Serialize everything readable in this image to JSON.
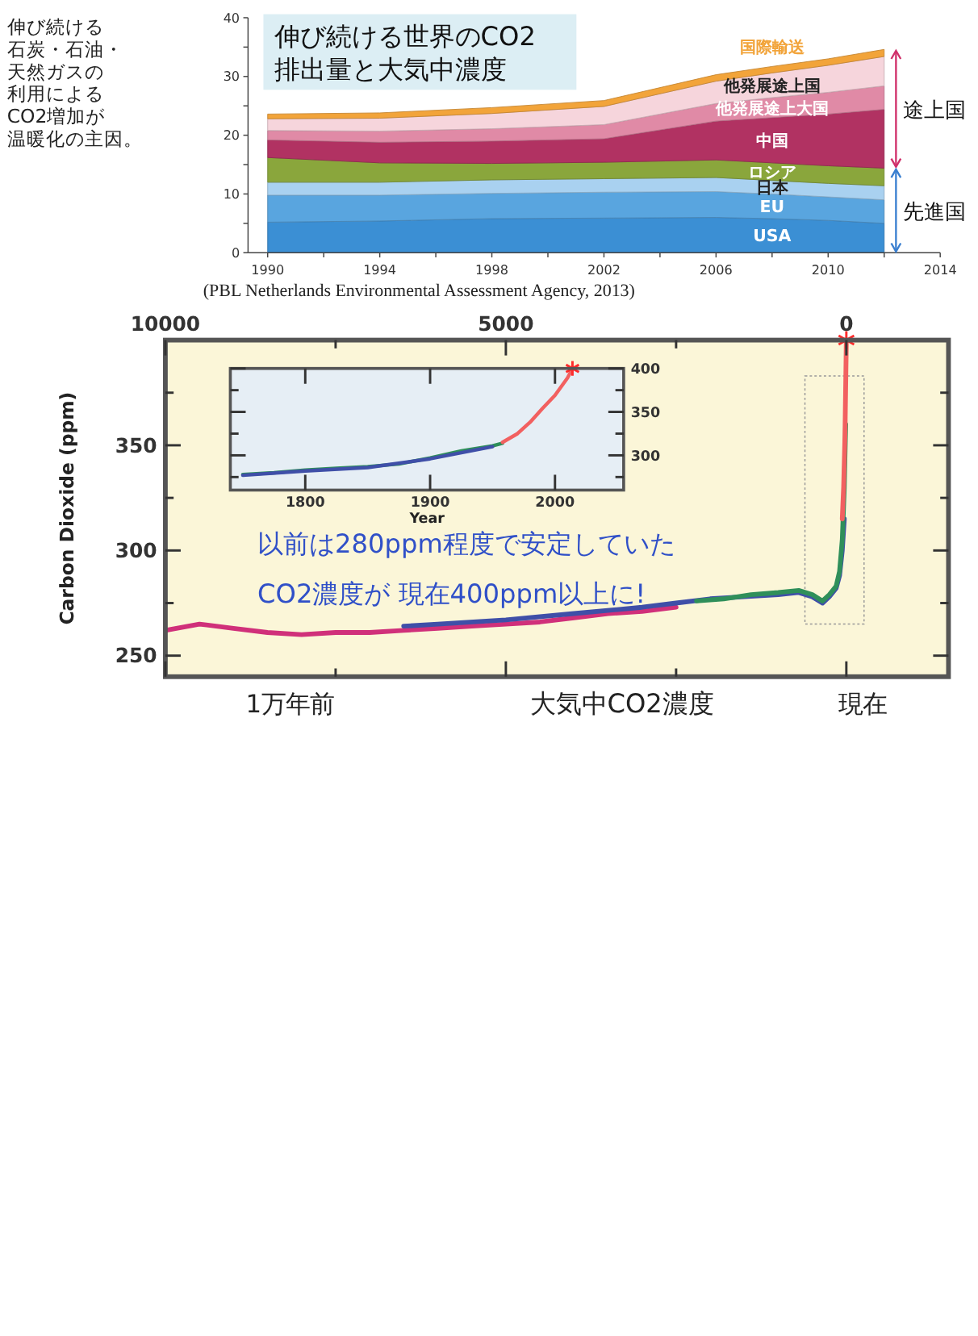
{
  "chart_data": [
    {
      "type": "area",
      "stacked": true,
      "title": "伸び続ける世界のCO2排出量と大気中濃度",
      "x": [
        1990,
        1994,
        1998,
        2002,
        2006,
        2008,
        2010,
        2012
      ],
      "xlim": [
        1989.3,
        2014
      ],
      "xticks": [
        1990,
        {
          "value": 1992,
          "label": null
        },
        1994,
        {
          "value": 1996,
          "label": null
        },
        1998,
        {
          "value": 2000,
          "label": null
        },
        2002,
        {
          "value": 2004,
          "label": null
        },
        2006,
        {
          "value": 2008,
          "label": null
        },
        2010,
        {
          "value": 2012,
          "label": null
        },
        2014
      ],
      "ylim": [
        0,
        40
      ],
      "yticks": [
        0,
        {
          "value": 5,
          "label": null
        },
        10,
        {
          "value": 15,
          "label": null
        },
        20,
        {
          "value": 25,
          "label": null
        },
        30,
        {
          "value": 35,
          "label": null
        },
        40
      ],
      "series": [
        {
          "name": "USA",
          "color": "#3b8fd4",
          "values": [
            5.2,
            5.4,
            5.8,
            5.9,
            6.0,
            5.8,
            5.5,
            5.0
          ]
        },
        {
          "name": "EU",
          "color": "#59a5df",
          "values": [
            4.6,
            4.4,
            4.3,
            4.4,
            4.4,
            4.2,
            4.0,
            4.0
          ]
        },
        {
          "name": "日本",
          "color": "#a9d1f0",
          "values": [
            2.2,
            2.2,
            2.3,
            2.3,
            2.4,
            2.3,
            2.3,
            2.4
          ]
        },
        {
          "name": "ロシア",
          "color": "#8aa63c",
          "values": [
            4.2,
            3.3,
            2.8,
            2.8,
            3.0,
            3.0,
            3.0,
            3.0
          ]
        },
        {
          "name": "中国",
          "color": "#b13262",
          "values": [
            3.0,
            3.5,
            3.8,
            4.0,
            6.6,
            7.7,
            8.8,
            10.0
          ]
        },
        {
          "name": "他発展途上大国",
          "color": "#e08aa6",
          "values": [
            1.6,
            1.9,
            2.1,
            2.4,
            3.0,
            3.4,
            3.7,
            4.0
          ]
        },
        {
          "name": "他発展途上国",
          "color": "#f6d5dc",
          "values": [
            2.0,
            2.2,
            2.6,
            3.1,
            3.8,
            4.2,
            4.6,
            5.0
          ]
        },
        {
          "name": "国際輸送",
          "color": "#f2a43a",
          "values": [
            0.8,
            0.9,
            1.0,
            1.0,
            1.1,
            1.1,
            1.1,
            1.2
          ]
        }
      ],
      "annotations": [
        "伸び続ける",
        "石炭・石油・",
        "天然ガスの",
        "利用による",
        "CO2増加が",
        "温暖化の主因。",
        "(PBL Netherlands Environmental Assessment Agency, 2013)",
        "途上国",
        "先進国"
      ]
    },
    {
      "type": "line",
      "xlabel": "大気中CO2濃度",
      "ylabel": "Carbon Dioxide (ppm)",
      "xlim": [
        10000,
        -1500
      ],
      "xticks": [
        10000,
        {
          "value": 7500,
          "label": null
        },
        5000,
        {
          "value": 2500,
          "label": null
        },
        0
      ],
      "ylim": [
        240,
        400
      ],
      "yticks": [
        250,
        {
          "value": 275,
          "label": null
        },
        300,
        {
          "value": 325,
          "label": null
        },
        350,
        {
          "value": 375,
          "label": null
        }
      ],
      "series": [
        {
          "color": "#d0307a",
          "x": [
            10000,
            9500,
            9000,
            8500,
            8000,
            7500,
            7000,
            6500,
            6000,
            5500,
            5000,
            4500,
            4000,
            3500,
            3000,
            2500
          ],
          "values": [
            262,
            265,
            263,
            261,
            260,
            261,
            261,
            262,
            263,
            264,
            265,
            266,
            268,
            270,
            271,
            273
          ]
        },
        {
          "color": "#3f4fa8",
          "x": [
            6500,
            6000,
            5000,
            4000,
            3000,
            2500,
            2000,
            1500,
            1000,
            700,
            500,
            350,
            250,
            150,
            100,
            60,
            30
          ],
          "values": [
            264,
            265,
            267,
            270,
            273,
            275,
            277,
            278,
            279,
            280,
            278,
            275,
            278,
            282,
            288,
            300,
            315
          ]
        },
        {
          "color": "#2f8f5a",
          "x": [
            2200,
            1800,
            1400,
            1000,
            700,
            500,
            350,
            250,
            150,
            100,
            60,
            30,
            10
          ],
          "values": [
            276,
            277,
            279,
            280,
            281,
            279,
            276,
            279,
            283,
            290,
            305,
            330,
            360
          ]
        },
        {
          "color": "#f26060",
          "x": [
            60,
            40,
            20,
            0
          ],
          "values": [
            315,
            330,
            355,
            400
          ]
        },
        {
          "type": "scatter",
          "marker": "cross",
          "color": "#ff2a2a",
          "x": [
            0
          ],
          "values": [
            400
          ]
        }
      ],
      "annotations": [
        "以前は280ppm程度で安定していた",
        "CO2濃度が 現在400ppm以上に!",
        "1万年前",
        "現在"
      ]
    },
    {
      "type": "line",
      "xlabel": "Year",
      "xlim": [
        1740,
        2055
      ],
      "xticks": [
        1800,
        1900,
        2000
      ],
      "ylim": [
        260,
        400
      ],
      "yticks": [
        {
          "value": 275,
          "label": null
        },
        300,
        {
          "value": 325,
          "label": null
        },
        350,
        {
          "value": 375,
          "label": null
        },
        400
      ],
      "series": [
        {
          "color": "#2f8f5a",
          "x": [
            1750,
            1775,
            1800,
            1825,
            1850,
            1875,
            1900,
            1925,
            1950,
            1958
          ],
          "values": [
            278,
            280,
            283,
            285,
            287,
            290,
            297,
            305,
            311,
            314
          ]
        },
        {
          "color": "#3f4fa8",
          "x": [
            1750,
            1800,
            1850,
            1900,
            1950
          ],
          "values": [
            277,
            282,
            286,
            296,
            310
          ]
        },
        {
          "color": "#f26060",
          "x": [
            1958,
            1970,
            1980,
            1990,
            2000,
            2010,
            2014
          ],
          "values": [
            315,
            325,
            338,
            354,
            369,
            389,
            400
          ]
        },
        {
          "type": "scatter",
          "marker": "cross",
          "color": "#ff2a2a",
          "x": [
            2014
          ],
          "values": [
            400
          ]
        }
      ]
    }
  ]
}
